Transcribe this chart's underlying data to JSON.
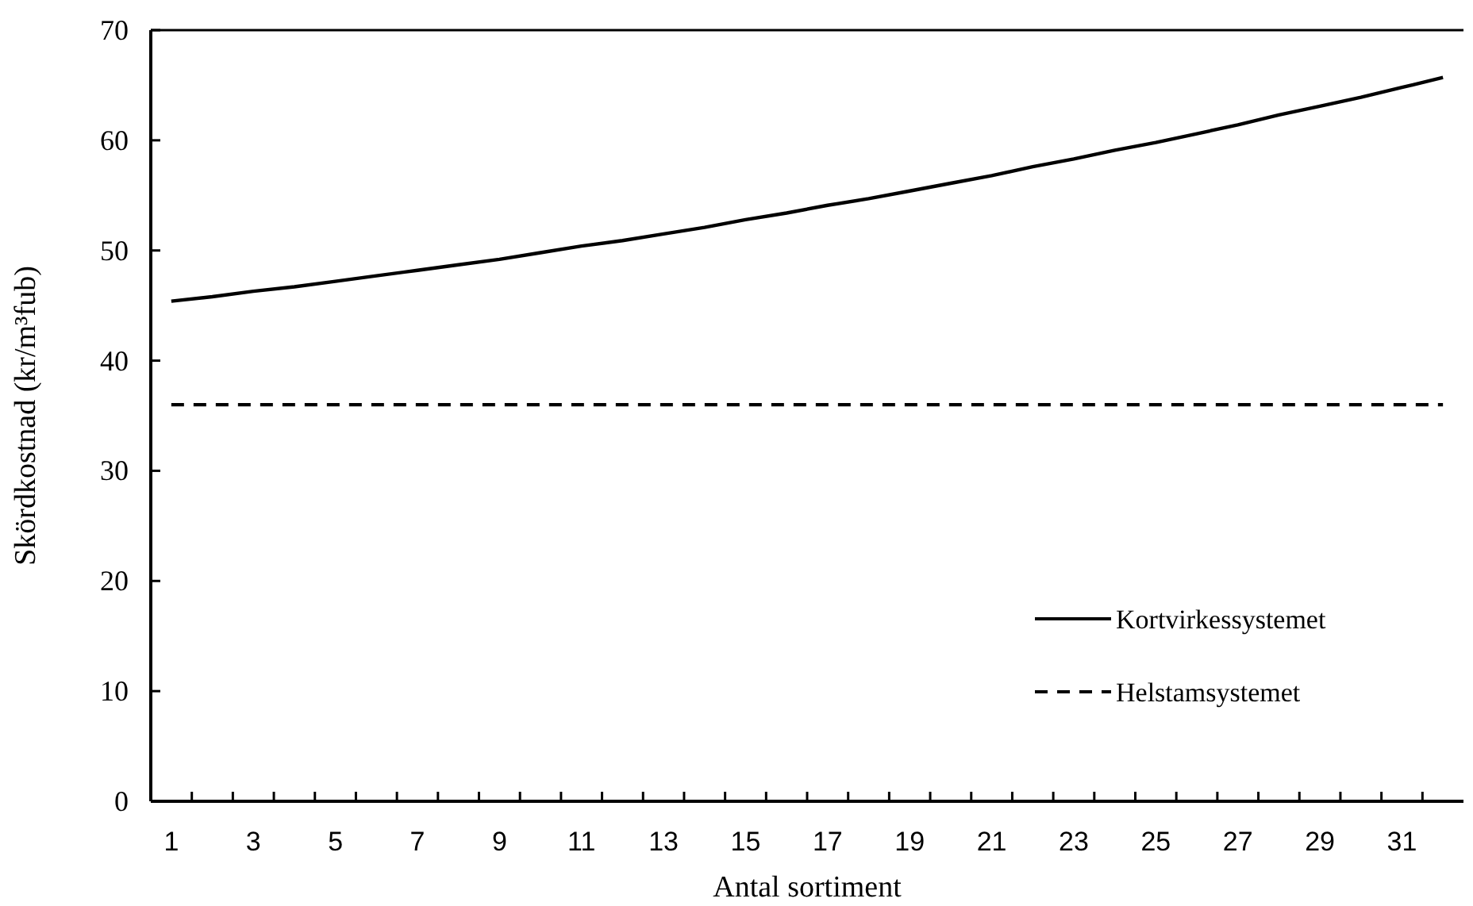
{
  "chart_data": {
    "type": "line",
    "xlabel": "Antal sortiment",
    "ylabel": "Skördkostnad (kr/m³fub)",
    "x": [
      1,
      2,
      3,
      4,
      5,
      6,
      7,
      8,
      9,
      10,
      11,
      12,
      13,
      14,
      15,
      16,
      17,
      18,
      19,
      20,
      21,
      22,
      23,
      24,
      25,
      26,
      27,
      28,
      29,
      30,
      31,
      32
    ],
    "xlim": [
      0.5,
      32.5
    ],
    "xticks": [
      1,
      3,
      5,
      7,
      9,
      11,
      13,
      15,
      17,
      19,
      21,
      23,
      25,
      27,
      29,
      31,
      {
        "value": 1.5,
        "label": null
      },
      {
        "value": 2.5,
        "label": null
      },
      {
        "value": 3.5,
        "label": null
      },
      {
        "value": 4.5,
        "label": null
      },
      {
        "value": 5.5,
        "label": null
      },
      {
        "value": 6.5,
        "label": null
      },
      {
        "value": 7.5,
        "label": null
      },
      {
        "value": 8.5,
        "label": null
      },
      {
        "value": 9.5,
        "label": null
      },
      {
        "value": 10.5,
        "label": null
      },
      {
        "value": 11.5,
        "label": null
      },
      {
        "value": 12.5,
        "label": null
      },
      {
        "value": 13.5,
        "label": null
      },
      {
        "value": 14.5,
        "label": null
      },
      {
        "value": 15.5,
        "label": null
      },
      {
        "value": 16.5,
        "label": null
      },
      {
        "value": 17.5,
        "label": null
      },
      {
        "value": 18.5,
        "label": null
      },
      {
        "value": 19.5,
        "label": null
      },
      {
        "value": 20.5,
        "label": null
      },
      {
        "value": 21.5,
        "label": null
      },
      {
        "value": 22.5,
        "label": null
      },
      {
        "value": 23.5,
        "label": null
      },
      {
        "value": 24.5,
        "label": null
      },
      {
        "value": 25.5,
        "label": null
      },
      {
        "value": 26.5,
        "label": null
      },
      {
        "value": 27.5,
        "label": null
      },
      {
        "value": 28.5,
        "label": null
      },
      {
        "value": 29.5,
        "label": null
      },
      {
        "value": 30.5,
        "label": null
      },
      {
        "value": 31.5,
        "label": null
      }
    ],
    "ylim": [
      0,
      70
    ],
    "yticks": [
      0,
      10,
      20,
      30,
      40,
      50,
      60,
      70
    ],
    "grid": false,
    "legend": "bottom right",
    "marker": "none",
    "series": [
      {
        "name": "Kortvirkessystemet",
        "color": "#000000",
        "line_style": "solid",
        "values": [
          45.4,
          45.8,
          46.3,
          46.7,
          47.2,
          47.7,
          48.2,
          48.7,
          49.2,
          49.8,
          50.4,
          50.9,
          51.5,
          52.1,
          52.8,
          53.4,
          54.1,
          54.7,
          55.4,
          56.1,
          56.8,
          57.6,
          58.3,
          59.1,
          59.8,
          60.6,
          61.4,
          62.3,
          63.1,
          63.9,
          64.8,
          65.7
        ]
      },
      {
        "name": "Helstamsystemet",
        "color": "#000000",
        "line_style": "dashed",
        "values": [
          36,
          36,
          36,
          36,
          36,
          36,
          36,
          36,
          36,
          36,
          36,
          36,
          36,
          36,
          36,
          36,
          36,
          36,
          36,
          36,
          36,
          36,
          36,
          36,
          36,
          36,
          36,
          36,
          36,
          36,
          36,
          36
        ]
      }
    ]
  }
}
